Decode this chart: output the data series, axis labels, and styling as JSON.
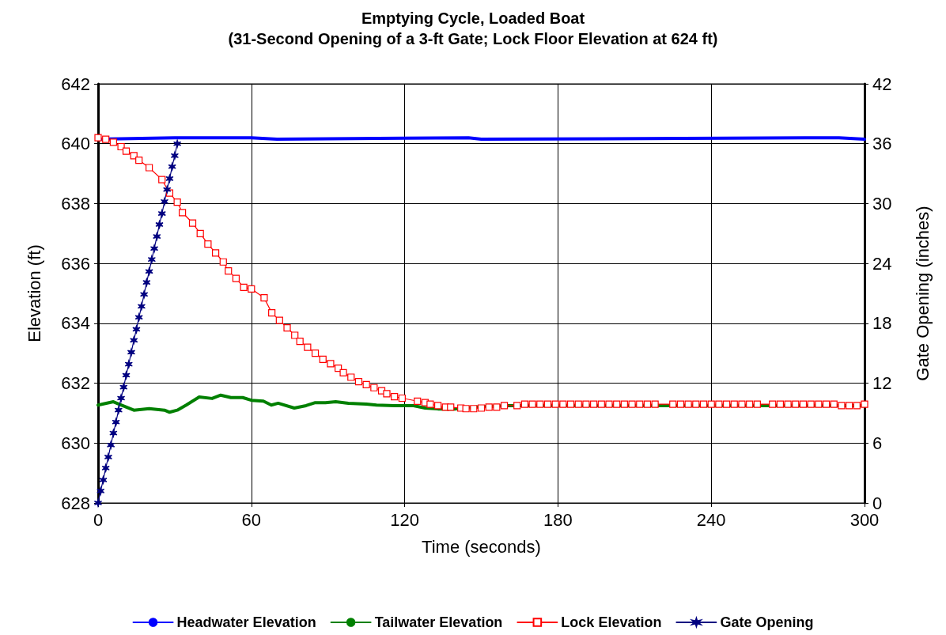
{
  "chart_data": {
    "type": "line",
    "title": "Emptying Cycle, Loaded Boat",
    "subtitle": "(31-Second Opening of a 3-ft Gate; Lock Floor Elevation at 624 ft)",
    "xlabel": "Time (seconds)",
    "ylabel": "Elevation (ft)",
    "y2label": "Gate Opening (inches)",
    "xlim": [
      0,
      300
    ],
    "xticks": [
      0,
      60,
      120,
      180,
      240,
      300
    ],
    "ylim": [
      628,
      642
    ],
    "yticks": [
      628,
      630,
      632,
      634,
      636,
      638,
      640,
      642
    ],
    "y2lim": [
      0,
      42
    ],
    "y2ticks": [
      0,
      6,
      12,
      18,
      24,
      30,
      36,
      42
    ],
    "grid": true,
    "legend": "bottom",
    "line_style": "solid",
    "series": [
      {
        "name": "Headwater Elevation",
        "color": "#0000ff",
        "marker": "none",
        "x": [
          0,
          30,
          60,
          70,
          145,
          150,
          290,
          300
        ],
        "values": [
          640.15,
          640.2,
          640.2,
          640.15,
          640.2,
          640.15,
          640.2,
          640.15
        ]
      },
      {
        "name": "Tailwater Elevation",
        "color": "#008000",
        "marker": "none",
        "x": [
          0,
          6,
          9,
          14,
          20,
          26,
          28,
          31,
          34.5,
          39.6,
          44.6,
          48,
          52,
          56.6,
          60,
          64.7,
          67.8,
          70.5,
          76.8,
          81.4,
          85,
          89,
          93,
          98,
          105,
          109,
          116,
          123.5,
          128,
          133,
          140,
          148,
          160,
          300
        ],
        "values": [
          631.27,
          631.38,
          631.27,
          631.1,
          631.15,
          631.1,
          631.03,
          631.1,
          631.27,
          631.54,
          631.49,
          631.6,
          631.52,
          631.52,
          631.43,
          631.4,
          631.27,
          631.33,
          631.17,
          631.25,
          631.35,
          631.35,
          631.38,
          631.33,
          631.3,
          631.27,
          631.25,
          631.25,
          631.17,
          631.14,
          631.14,
          631.2,
          631.25,
          631.25
        ]
      },
      {
        "name": "Lock Elevation",
        "color": "#ff0000",
        "marker": "square",
        "x": [
          0,
          3,
          6,
          9,
          11,
          14,
          16,
          20,
          25,
          28,
          31,
          33,
          37,
          40,
          43,
          46,
          49,
          51,
          54,
          57,
          60,
          65,
          68,
          71,
          74,
          77,
          79,
          82,
          85,
          88,
          91,
          94,
          96,
          99,
          102,
          105,
          108,
          111,
          113,
          116,
          119,
          125,
          128,
          130,
          133,
          136,
          138,
          142,
          144,
          147,
          150,
          153,
          156,
          159,
          164,
          167,
          170,
          173,
          176,
          179,
          182,
          185,
          188,
          191,
          194,
          197,
          200,
          203,
          206,
          209,
          212,
          215,
          218,
          225,
          228,
          231,
          234,
          237,
          240,
          243,
          246,
          249,
          252,
          255,
          258,
          264,
          267,
          270,
          273,
          276,
          279,
          282,
          285,
          288,
          291,
          294,
          297,
          300
        ],
        "values": [
          640.2,
          640.15,
          640.05,
          639.9,
          639.75,
          639.6,
          639.45,
          639.2,
          638.8,
          638.35,
          638.05,
          637.7,
          637.35,
          637.0,
          636.65,
          636.35,
          636.05,
          635.75,
          635.5,
          635.2,
          635.15,
          634.85,
          634.35,
          634.1,
          633.85,
          633.6,
          633.4,
          633.2,
          633.0,
          632.8,
          632.65,
          632.5,
          632.35,
          632.2,
          632.05,
          631.95,
          631.85,
          631.75,
          631.65,
          631.55,
          631.5,
          631.4,
          631.35,
          631.3,
          631.25,
          631.2,
          631.2,
          631.17,
          631.15,
          631.15,
          631.17,
          631.2,
          631.2,
          631.25,
          631.25,
          631.3,
          631.3,
          631.3,
          631.3,
          631.3,
          631.3,
          631.3,
          631.3,
          631.3,
          631.3,
          631.3,
          631.3,
          631.3,
          631.3,
          631.3,
          631.3,
          631.3,
          631.3,
          631.3,
          631.3,
          631.3,
          631.3,
          631.3,
          631.3,
          631.3,
          631.3,
          631.3,
          631.3,
          631.3,
          631.3,
          631.3,
          631.3,
          631.3,
          631.3,
          631.3,
          631.3,
          631.3,
          631.3,
          631.3,
          631.25,
          631.25,
          631.25,
          631.3
        ]
      },
      {
        "name": "Gate Opening",
        "color": "#000080",
        "marker": "cross",
        "axis": "y2",
        "x": [
          0,
          1,
          2,
          3,
          4,
          5,
          6,
          7,
          8,
          9,
          10,
          11,
          12,
          13,
          14,
          15,
          16,
          17,
          18,
          19,
          20,
          21,
          22,
          23,
          24,
          25,
          26,
          27,
          28,
          29,
          30,
          31
        ],
        "values": [
          0,
          1.2,
          2.3,
          3.5,
          4.6,
          5.8,
          7.0,
          8.1,
          9.3,
          10.5,
          11.6,
          12.8,
          13.9,
          15.1,
          16.3,
          17.4,
          18.6,
          19.7,
          20.9,
          22.1,
          23.2,
          24.4,
          25.5,
          26.7,
          27.9,
          29.0,
          30.2,
          31.4,
          32.5,
          33.7,
          34.8,
          36.0
        ]
      }
    ]
  }
}
